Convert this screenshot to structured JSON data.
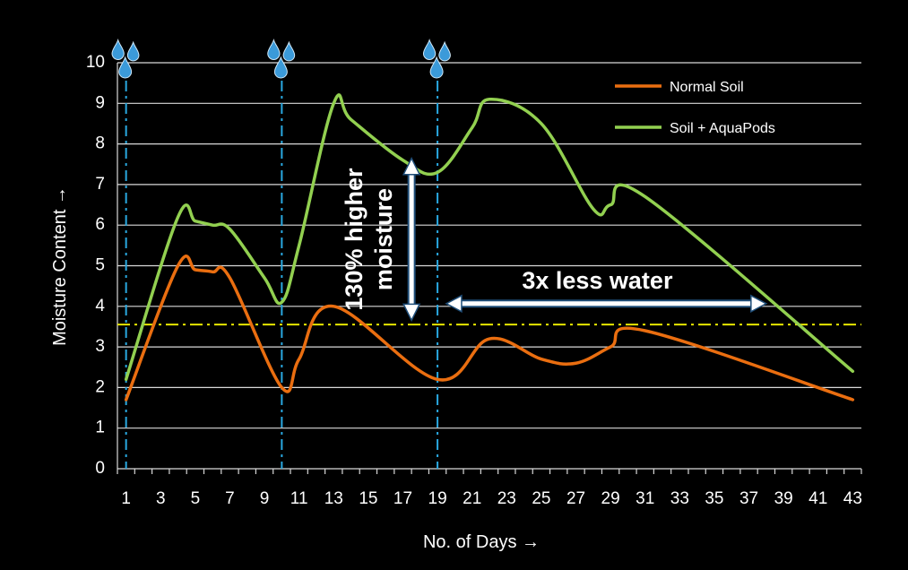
{
  "chart_data": {
    "type": "line",
    "title": "",
    "xlabel": "No. of Days",
    "ylabel": "Moisture Content",
    "xlabel_arrow": "→",
    "ylabel_arrow": "→",
    "xlim": [
      1,
      43
    ],
    "ylim": [
      0,
      10
    ],
    "x_ticks": [
      "1",
      "3",
      "5",
      "7",
      "9",
      "11",
      "13",
      "15",
      "17",
      "19",
      "21",
      "23",
      "25",
      "27",
      "29",
      "31",
      "33",
      "35",
      "37",
      "39",
      "41",
      "43"
    ],
    "y_ticks": [
      "0",
      "1",
      "2",
      "3",
      "4",
      "5",
      "6",
      "7",
      "8",
      "9",
      "10"
    ],
    "grid": "horizontal",
    "legend_position": "top-right",
    "series": [
      {
        "name": "Normal Soil",
        "color": "#ea6e10",
        "points": [
          [
            1,
            1.7
          ],
          [
            4,
            5.0
          ],
          [
            5,
            4.9
          ],
          [
            6,
            4.85
          ],
          [
            7,
            4.7
          ],
          [
            10,
            2.0
          ],
          [
            11,
            2.7
          ],
          [
            13,
            4.0
          ],
          [
            19,
            2.2
          ],
          [
            22,
            3.2
          ],
          [
            25,
            2.7
          ],
          [
            27,
            2.6
          ],
          [
            29,
            3.0
          ],
          [
            31,
            3.4
          ],
          [
            43,
            1.7
          ]
        ]
      },
      {
        "name": "Soil + AquaPods",
        "color": "#92d050",
        "points": [
          [
            1,
            2.2
          ],
          [
            4,
            6.2
          ],
          [
            5,
            6.1
          ],
          [
            6,
            6.0
          ],
          [
            7,
            5.9
          ],
          [
            9,
            4.7
          ],
          [
            10,
            4.1
          ],
          [
            11,
            5.5
          ],
          [
            13,
            9.0
          ],
          [
            14,
            8.6
          ],
          [
            17,
            7.6
          ],
          [
            19,
            7.3
          ],
          [
            21,
            8.4
          ],
          [
            22,
            9.1
          ],
          [
            25,
            8.5
          ],
          [
            28,
            6.4
          ],
          [
            29,
            6.5
          ],
          [
            31,
            6.7
          ],
          [
            43,
            2.4
          ]
        ]
      }
    ],
    "reference_line": {
      "y": 3.55,
      "color": "#e6e600"
    },
    "watering_days": [
      1,
      10,
      19
    ],
    "watering_color": "#29a8e0",
    "annotations": {
      "vertical_arrow": {
        "x": 17.5,
        "y_from": 3.7,
        "y_to": 7.6,
        "label_line1": "130% higher",
        "label_line2": "moisture"
      },
      "horizontal_arrow": {
        "y": 4.0,
        "x_from": 19.2,
        "x_to": 38,
        "label": "3x less water"
      }
    }
  }
}
